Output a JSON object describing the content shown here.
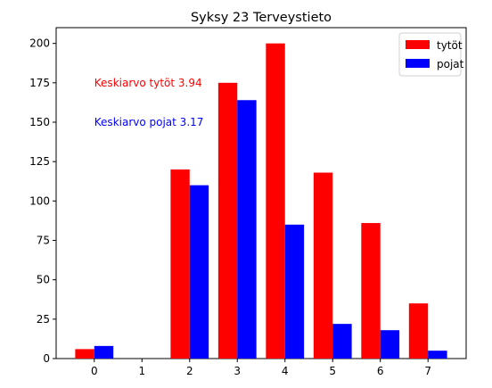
{
  "chart_data": {
    "type": "bar",
    "title": "Syksy 23 Terveystieto",
    "xlabel": "",
    "ylabel": "",
    "x": [
      0,
      1,
      2,
      3,
      4,
      5,
      6,
      7
    ],
    "xlim": [
      -0.8,
      7.8
    ],
    "ylim": [
      0,
      210
    ],
    "yticks": [
      0,
      25,
      50,
      75,
      100,
      125,
      150,
      175,
      200
    ],
    "grid": false,
    "legend_position": "top-right",
    "series": [
      {
        "name": "tytöt",
        "color": "#ff0000",
        "values": [
          6,
          0,
          120,
          175,
          200,
          118,
          86,
          35
        ]
      },
      {
        "name": "pojat",
        "color": "#0000ff",
        "values": [
          8,
          0,
          110,
          164,
          85,
          22,
          18,
          5
        ]
      }
    ],
    "annotations": [
      {
        "text": "Keskiarvo tytöt 3.94",
        "x": 0,
        "y": 175,
        "color": "#ff0000"
      },
      {
        "text": "Keskiarvo pojat 3.17",
        "x": 0,
        "y": 150,
        "color": "#0000ff"
      }
    ]
  }
}
